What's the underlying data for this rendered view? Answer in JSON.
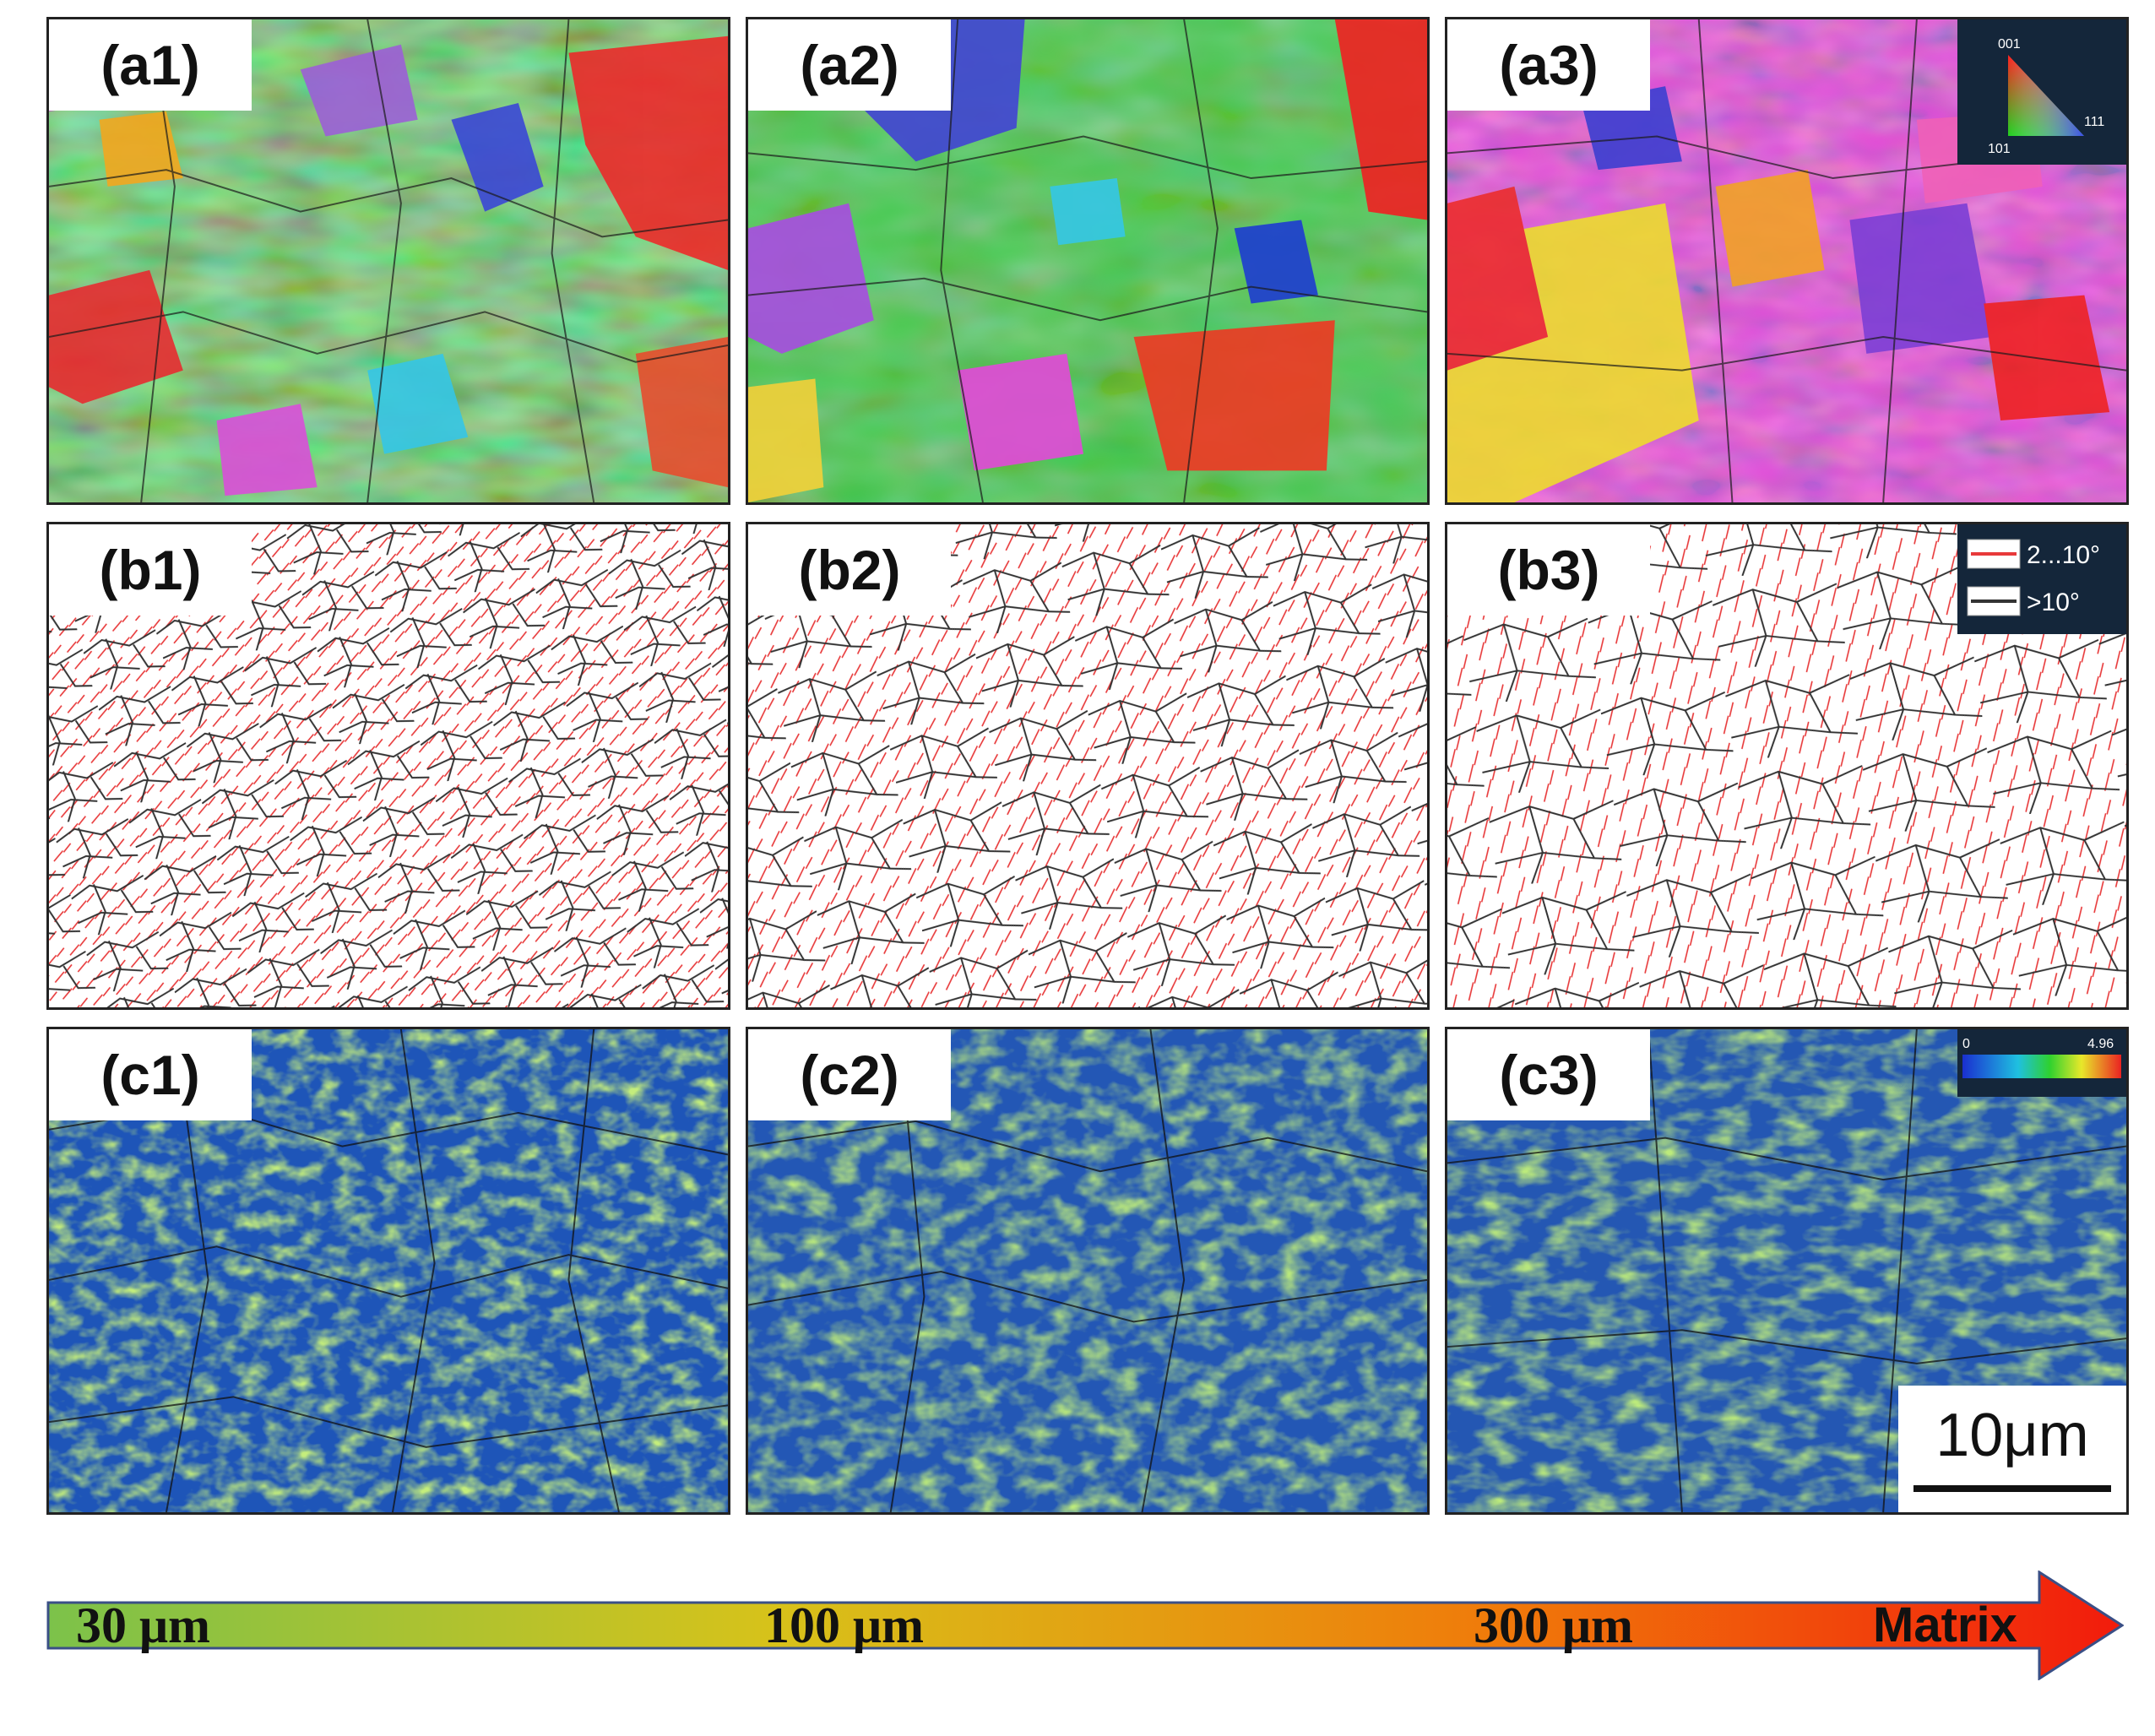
{
  "panels": {
    "a1": "(a1)",
    "a2": "(a2)",
    "a3": "(a3)",
    "b1": "(b1)",
    "b2": "(b2)",
    "b3": "(b3)",
    "c1": "(c1)",
    "c2": "(c2)",
    "c3": "(c3)"
  },
  "ipf_key": {
    "top": "001",
    "left": "101",
    "right": "111"
  },
  "boundary_legend": {
    "low": "2...10°",
    "high": ">10°",
    "low_color": "#e8393a",
    "high_color": "#333333"
  },
  "kam_scale": {
    "min": "0",
    "max": "4.96"
  },
  "scale_bar": "10μm",
  "arrow": {
    "labels": [
      "30 μm",
      "100 μm",
      "300 μm",
      "Matrix"
    ],
    "gradient": [
      "#7cc24a",
      "#d7c21a",
      "#f07a0a",
      "#f21b0c"
    ]
  }
}
